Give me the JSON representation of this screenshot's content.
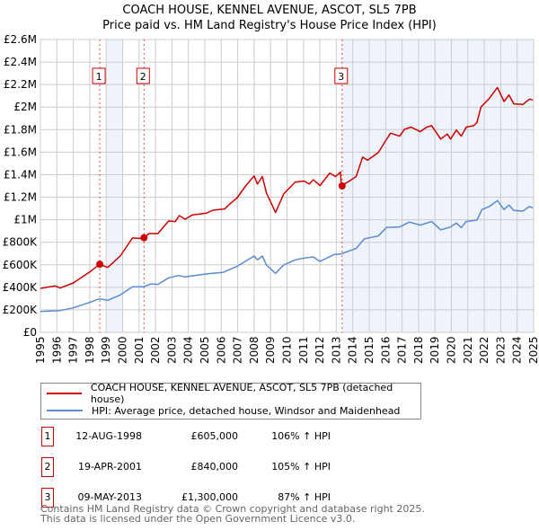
{
  "chart_data": {
    "type": "line",
    "title": "COACH HOUSE, KENNEL AVENUE, ASCOT, SL5 7PB",
    "subtitle": "Price paid vs. HM Land Registry's House Price Index (HPI)",
    "xlim": [
      1995,
      2025
    ],
    "ylim": [
      0,
      2600000
    ],
    "yticks": [
      0,
      200000,
      400000,
      600000,
      800000,
      1000000,
      1200000,
      1400000,
      1600000,
      1800000,
      2000000,
      2200000,
      2400000,
      2600000
    ],
    "ytick_labels": [
      "£0",
      "£200K",
      "£400K",
      "£600K",
      "£800K",
      "£1M",
      "£1.2M",
      "£1.4M",
      "£1.6M",
      "£1.8M",
      "£2M",
      "£2.2M",
      "£2.4M",
      "£2.6M"
    ],
    "xticks": [
      "1995",
      "1996",
      "1997",
      "1998",
      "1999",
      "2000",
      "2001",
      "2002",
      "2003",
      "2004",
      "2005",
      "2006",
      "2007",
      "2008",
      "2009",
      "2010",
      "2011",
      "2012",
      "2013",
      "2014",
      "2015",
      "2016",
      "2017",
      "2018",
      "2019",
      "2020",
      "2021",
      "2022",
      "2023",
      "2024",
      "2025"
    ],
    "grid": true,
    "shaded_ranges": [
      [
        1999.0,
        2000.0
      ],
      [
        2013.35,
        2025
      ]
    ],
    "series": [
      {
        "name": "COACH HOUSE, KENNEL AVENUE, ASCOT, SL5 7PB (detached house)",
        "color": "#cc0000",
        "points": [
          [
            1995,
            391
          ],
          [
            1995.9,
            412
          ],
          [
            1996.2,
            394
          ],
          [
            1997,
            439
          ],
          [
            1998,
            537
          ],
          [
            1998.6,
            604
          ],
          [
            1999.1,
            577
          ],
          [
            1999.85,
            678
          ],
          [
            2000.6,
            838
          ],
          [
            2001.25,
            833
          ],
          [
            2001.6,
            877
          ],
          [
            2002.15,
            877
          ],
          [
            2002.8,
            989
          ],
          [
            2003.2,
            984
          ],
          [
            2003.45,
            1037
          ],
          [
            2003.8,
            1005
          ],
          [
            2004.25,
            1043
          ],
          [
            2005.1,
            1059
          ],
          [
            2005.5,
            1085
          ],
          [
            2006.2,
            1096
          ],
          [
            2006.55,
            1144
          ],
          [
            2006.95,
            1192
          ],
          [
            2007.5,
            1304
          ],
          [
            2008.0,
            1389
          ],
          [
            2008.2,
            1317
          ],
          [
            2008.5,
            1384
          ],
          [
            2008.75,
            1237
          ],
          [
            2009.05,
            1144
          ],
          [
            2009.3,
            1064
          ],
          [
            2009.8,
            1229
          ],
          [
            2010.5,
            1335
          ],
          [
            2011.05,
            1343
          ],
          [
            2011.35,
            1317
          ],
          [
            2011.6,
            1356
          ],
          [
            2012.0,
            1303
          ],
          [
            2012.6,
            1415
          ],
          [
            2012.95,
            1383
          ],
          [
            2013.25,
            1423
          ],
          [
            2013.3,
            1303
          ],
          [
            2013.65,
            1330
          ],
          [
            2014.2,
            1383
          ],
          [
            2014.6,
            1556
          ],
          [
            2014.9,
            1529
          ],
          [
            2015.55,
            1596
          ],
          [
            2016.0,
            1702
          ],
          [
            2016.3,
            1769
          ],
          [
            2016.85,
            1742
          ],
          [
            2017.15,
            1803
          ],
          [
            2017.55,
            1822
          ],
          [
            2018.1,
            1782
          ],
          [
            2018.5,
            1822
          ],
          [
            2018.8,
            1835
          ],
          [
            2019.35,
            1716
          ],
          [
            2019.75,
            1761
          ],
          [
            2019.95,
            1716
          ],
          [
            2020.3,
            1796
          ],
          [
            2020.6,
            1742
          ],
          [
            2020.9,
            1822
          ],
          [
            2021.35,
            1835
          ],
          [
            2021.55,
            1862
          ],
          [
            2021.8,
            2000
          ],
          [
            2022.3,
            2076
          ],
          [
            2022.8,
            2174
          ],
          [
            2023.2,
            2050
          ],
          [
            2023.5,
            2108
          ],
          [
            2023.8,
            2029
          ],
          [
            2024.35,
            2023
          ],
          [
            2024.75,
            2071
          ],
          [
            2024.95,
            2063
          ]
        ]
      },
      {
        "name": "HPI: Average price, detached house, Windsor and Maidenhead",
        "color": "#5b8bd0",
        "points": [
          [
            1995,
            186
          ],
          [
            1996.2,
            194
          ],
          [
            1997,
            218
          ],
          [
            1998,
            266
          ],
          [
            1998.6,
            298
          ],
          [
            1999.1,
            285
          ],
          [
            1999.85,
            332
          ],
          [
            2000.6,
            404
          ],
          [
            2001.25,
            404
          ],
          [
            2001.75,
            431
          ],
          [
            2002.15,
            426
          ],
          [
            2002.8,
            484
          ],
          [
            2003.4,
            505
          ],
          [
            2003.8,
            492
          ],
          [
            2005.1,
            519
          ],
          [
            2006.1,
            532
          ],
          [
            2006.95,
            585
          ],
          [
            2008.0,
            678
          ],
          [
            2008.2,
            644
          ],
          [
            2008.5,
            678
          ],
          [
            2008.75,
            598
          ],
          [
            2009.3,
            524
          ],
          [
            2009.8,
            598
          ],
          [
            2010.5,
            644
          ],
          [
            2011.05,
            660
          ],
          [
            2011.6,
            670
          ],
          [
            2012.0,
            630
          ],
          [
            2012.85,
            691
          ],
          [
            2013.3,
            697
          ],
          [
            2014.2,
            745
          ],
          [
            2014.7,
            830
          ],
          [
            2015.55,
            856
          ],
          [
            2016.05,
            931
          ],
          [
            2016.85,
            936
          ],
          [
            2017.45,
            979
          ],
          [
            2018.1,
            952
          ],
          [
            2018.8,
            984
          ],
          [
            2019.35,
            910
          ],
          [
            2019.95,
            936
          ],
          [
            2020.3,
            971
          ],
          [
            2020.6,
            931
          ],
          [
            2020.9,
            984
          ],
          [
            2021.55,
            997
          ],
          [
            2021.85,
            1090
          ],
          [
            2022.3,
            1117
          ],
          [
            2022.8,
            1170
          ],
          [
            2023.2,
            1090
          ],
          [
            2023.5,
            1130
          ],
          [
            2023.8,
            1082
          ],
          [
            2024.35,
            1077
          ],
          [
            2024.75,
            1117
          ],
          [
            2024.95,
            1104
          ]
        ]
      }
    ],
    "point_units": "thousands GBP",
    "sales": [
      {
        "label": "1",
        "x": 1998.61,
        "value": 605000,
        "date": "12-AUG-1998",
        "price": "£605,000",
        "hpi": "106% ↑ HPI"
      },
      {
        "label": "2",
        "x": 2001.3,
        "value": 840000,
        "date": "19-APR-2001",
        "price": "£840,000",
        "hpi": "105% ↑ HPI"
      },
      {
        "label": "3",
        "x": 2013.35,
        "value": 1300000,
        "date": "09-MAY-2013",
        "price": "£1,300,000",
        "hpi": "87% ↑ HPI"
      }
    ]
  },
  "legend": {
    "red": "COACH HOUSE, KENNEL AVENUE, ASCOT, SL5 7PB (detached house)",
    "blue": "HPI: Average price, detached house, Windsor and Maidenhead"
  },
  "footer": {
    "line1": "Contains HM Land Registry data © Crown copyright and database right 2025.",
    "line2": "This data is licensed under the Open Government Licence v3.0."
  }
}
